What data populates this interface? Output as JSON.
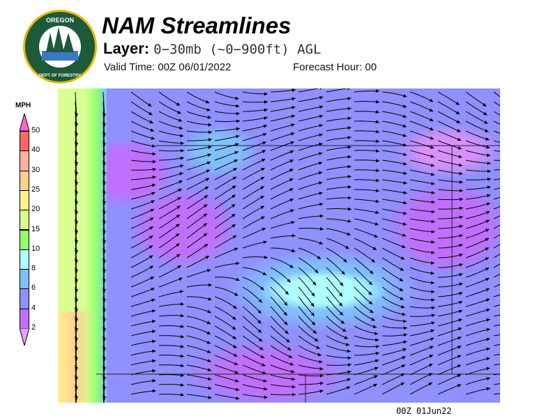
{
  "logo": {
    "top_text": "OREGON",
    "bottom_text": "DEPARTMENT OF FORESTRY"
  },
  "header": {
    "title": "NAM Streamlines",
    "layer_label": "Layer:",
    "layer_value": "0−30mb (~0−900ft) AGL",
    "valid_time": "Valid Time: 00Z 06/01/2022",
    "forecast_hour": "Forecast Hour: 00"
  },
  "legend": {
    "unit": "MPH",
    "labels": [
      "50",
      "40",
      "30",
      "25",
      "20",
      "15",
      "10",
      "8",
      "6",
      "4",
      "2"
    ],
    "colors": [
      "#ff66cc",
      "#ff6666",
      "#ffb0a0",
      "#ffd090",
      "#fff08a",
      "#d8ff90",
      "#90ff70",
      "#b0ffff",
      "#80c0ff",
      "#9090ff",
      "#c070ff",
      "#e8a0ff"
    ]
  },
  "timestamp": "00Z 01Jun22"
}
